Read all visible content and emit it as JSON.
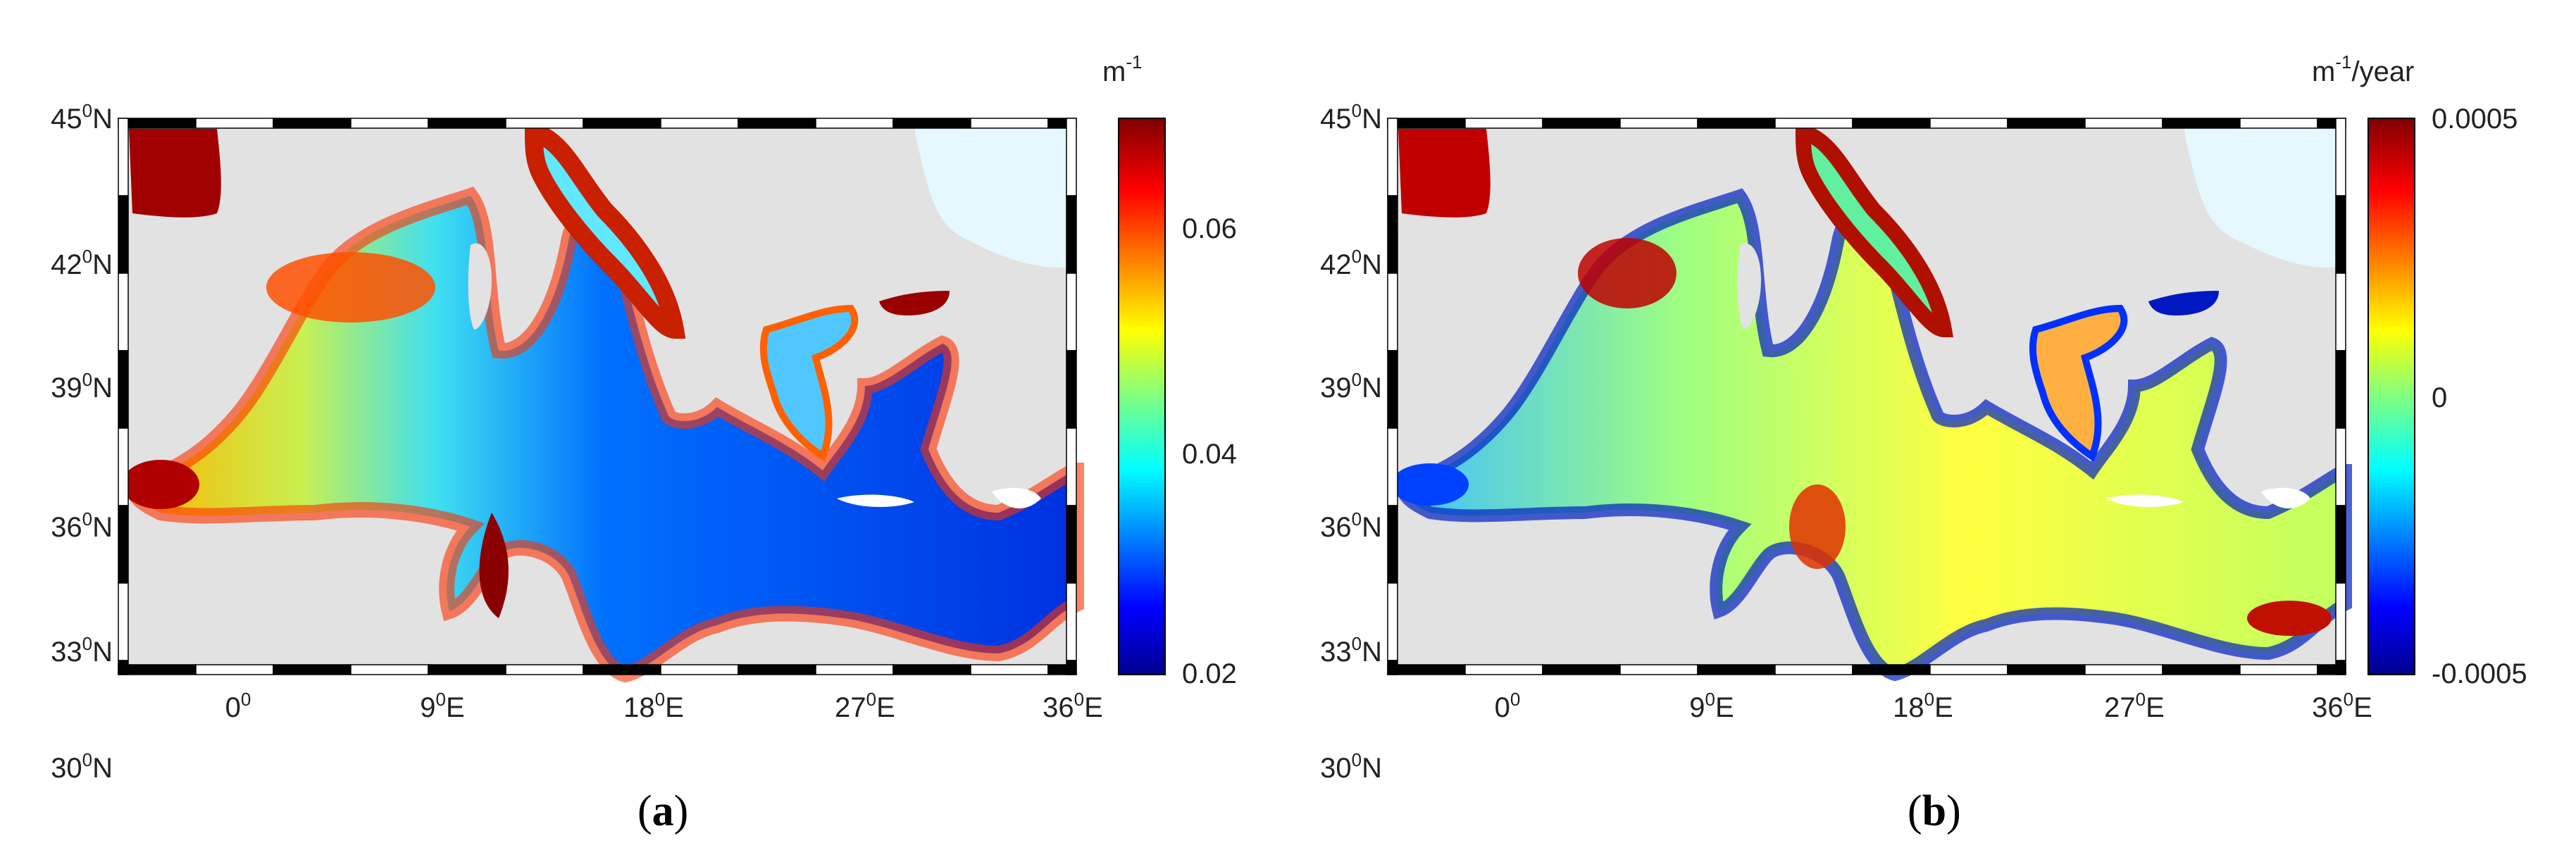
{
  "figure": {
    "panels": [
      {
        "id": "a",
        "label_open": "(",
        "label_letter": "a",
        "label_close": ")",
        "colorbar": {
          "unit": "m",
          "unit_exp": "-1",
          "unit_suffix": "",
          "ticks": [
            "0.06",
            "0.04",
            "0.02"
          ],
          "range": [
            0.02,
            0.07
          ]
        }
      },
      {
        "id": "b",
        "label_open": "(",
        "label_letter": "b",
        "label_close": ")",
        "colorbar": {
          "unit": "m",
          "unit_exp": "-1",
          "unit_suffix": "/year",
          "ticks": [
            "0.0005",
            "0",
            "-0.0005"
          ],
          "range": [
            -0.0005,
            0.0005
          ]
        }
      }
    ],
    "lat_ticks": [
      {
        "deg": "45",
        "sup": "0",
        "hem": "N"
      },
      {
        "deg": "42",
        "sup": "0",
        "hem": "N"
      },
      {
        "deg": "39",
        "sup": "0",
        "hem": "N"
      },
      {
        "deg": "36",
        "sup": "0",
        "hem": "N"
      },
      {
        "deg": "33",
        "sup": "0",
        "hem": "N"
      },
      {
        "deg": "30",
        "sup": "0",
        "hem": "N"
      }
    ],
    "lon_ticks": [
      {
        "deg": "0",
        "sup": "0",
        "hem": ""
      },
      {
        "deg": "9",
        "sup": "0",
        "hem": "E"
      },
      {
        "deg": "18",
        "sup": "0",
        "hem": "E"
      },
      {
        "deg": "27",
        "sup": "0",
        "hem": "E"
      },
      {
        "deg": "36",
        "sup": "0",
        "hem": "E"
      }
    ],
    "colormap": [
      "#00008f",
      "#0000ff",
      "#0080ff",
      "#00ffff",
      "#80ff80",
      "#ffff00",
      "#ff8000",
      "#ff0000",
      "#800000"
    ],
    "colors": {
      "land": "#e2e2e2",
      "black_sea_land": "#e6f8ff"
    }
  }
}
